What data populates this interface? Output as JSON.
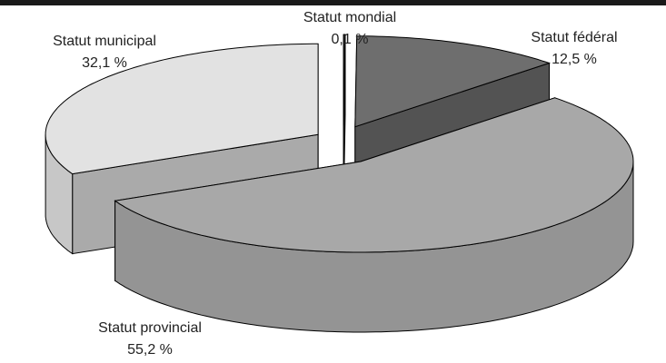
{
  "chart_data": {
    "type": "pie3d",
    "categories": [
      "Statut mondial",
      "Statut fédéral",
      "Statut provincial",
      "Statut municipal"
    ],
    "values": [
      0.1,
      12.5,
      55.2,
      32.1
    ],
    "value_labels": [
      "0,1 %",
      "12,5 %",
      "55,2 %",
      "32,1 %"
    ],
    "colors": [
      "#3a3a3a",
      "#6e6e6e",
      "#a8a8a8",
      "#e2e2e2"
    ]
  }
}
